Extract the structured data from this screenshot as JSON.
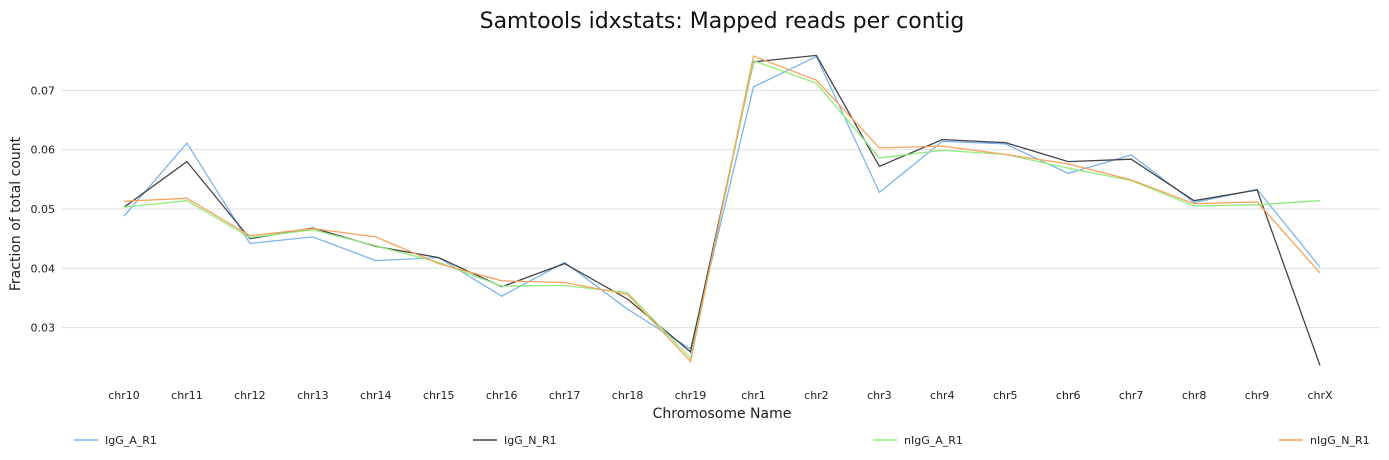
{
  "chart_data": {
    "type": "line",
    "title": "Samtools idxstats: Mapped reads per contig",
    "xlabel": "Chromosome Name",
    "ylabel": "Fraction of total count",
    "categories": [
      "chr10",
      "chr11",
      "chr12",
      "chr13",
      "chr14",
      "chr15",
      "chr16",
      "chr17",
      "chr18",
      "chr19",
      "chr1",
      "chr2",
      "chr3",
      "chr4",
      "chr5",
      "chr6",
      "chr7",
      "chr8",
      "chr9",
      "chrX"
    ],
    "yticks": [
      "0.03",
      "0.04",
      "0.05",
      "0.06",
      "0.07"
    ],
    "ylim": [
      0.0215,
      0.0785
    ],
    "grid": true,
    "legend_position": "bottom",
    "series": [
      {
        "name": "IgG_A_R1",
        "color": "#7cb5ec",
        "values": [
          0.0488,
          0.0611,
          0.0442,
          0.0453,
          0.0413,
          0.0418,
          0.0353,
          0.041,
          0.0331,
          0.0264,
          0.0706,
          0.0757,
          0.0528,
          0.0614,
          0.061,
          0.056,
          0.0591,
          0.0511,
          0.0533,
          0.0402
        ]
      },
      {
        "name": "IgG_N_R1",
        "color": "#434348",
        "values": [
          0.0503,
          0.058,
          0.045,
          0.0468,
          0.0437,
          0.0418,
          0.0369,
          0.0408,
          0.0348,
          0.0259,
          0.0748,
          0.0759,
          0.0572,
          0.0617,
          0.0612,
          0.058,
          0.0584,
          0.0514,
          0.0532,
          0.0236
        ]
      },
      {
        "name": "nIgG_A_R1",
        "color": "#90ed7d",
        "values": [
          0.0503,
          0.0514,
          0.0452,
          0.0465,
          0.0438,
          0.041,
          0.037,
          0.0371,
          0.0359,
          0.0248,
          0.075,
          0.0712,
          0.0586,
          0.0599,
          0.0592,
          0.0569,
          0.0548,
          0.0505,
          0.0507,
          0.0514
        ]
      },
      {
        "name": "nIgG_N_R1",
        "color": "#f7a35c",
        "values": [
          0.0513,
          0.0518,
          0.0455,
          0.0467,
          0.0453,
          0.0408,
          0.0379,
          0.0376,
          0.0356,
          0.0243,
          0.0758,
          0.0717,
          0.0603,
          0.0606,
          0.0592,
          0.0576,
          0.0549,
          0.0509,
          0.0512,
          0.0392
        ]
      }
    ]
  }
}
